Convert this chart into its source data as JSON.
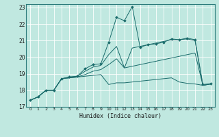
{
  "xlabel": "Humidex (Indice chaleur)",
  "xlim": [
    -0.5,
    23.5
  ],
  "ylim": [
    17,
    23.2
  ],
  "yticks": [
    17,
    18,
    19,
    20,
    21,
    22,
    23
  ],
  "xticks": [
    0,
    1,
    2,
    3,
    4,
    5,
    6,
    7,
    8,
    9,
    10,
    11,
    12,
    13,
    14,
    15,
    16,
    17,
    18,
    19,
    20,
    21,
    22,
    23
  ],
  "bg_color": "#c0e8e0",
  "grid_color": "#b0d8d0",
  "line_color": "#1a6b6b",
  "series": [
    [
      17.4,
      17.6,
      18.0,
      18.0,
      18.7,
      18.8,
      18.85,
      19.3,
      19.55,
      19.6,
      20.9,
      22.4,
      22.2,
      23.05,
      20.6,
      20.75,
      20.8,
      20.9,
      21.1,
      21.05,
      21.15,
      21.05,
      18.35,
      18.4
    ],
    [
      17.4,
      17.6,
      18.0,
      18.0,
      18.7,
      18.8,
      18.85,
      19.15,
      19.4,
      19.5,
      20.15,
      20.65,
      19.35,
      20.55,
      20.65,
      20.75,
      20.85,
      20.95,
      21.05,
      21.05,
      21.1,
      21.0,
      18.3,
      18.38
    ],
    [
      17.4,
      17.6,
      18.0,
      18.0,
      18.7,
      18.75,
      18.8,
      18.95,
      19.15,
      19.25,
      19.55,
      19.9,
      19.35,
      19.45,
      19.55,
      19.65,
      19.75,
      19.85,
      19.95,
      20.05,
      20.15,
      20.25,
      18.3,
      18.38
    ],
    [
      17.4,
      17.6,
      18.0,
      18.0,
      18.7,
      18.75,
      18.8,
      18.85,
      18.9,
      18.95,
      18.35,
      18.45,
      18.45,
      18.5,
      18.55,
      18.6,
      18.65,
      18.7,
      18.75,
      18.5,
      18.42,
      18.38,
      18.3,
      18.38
    ]
  ]
}
